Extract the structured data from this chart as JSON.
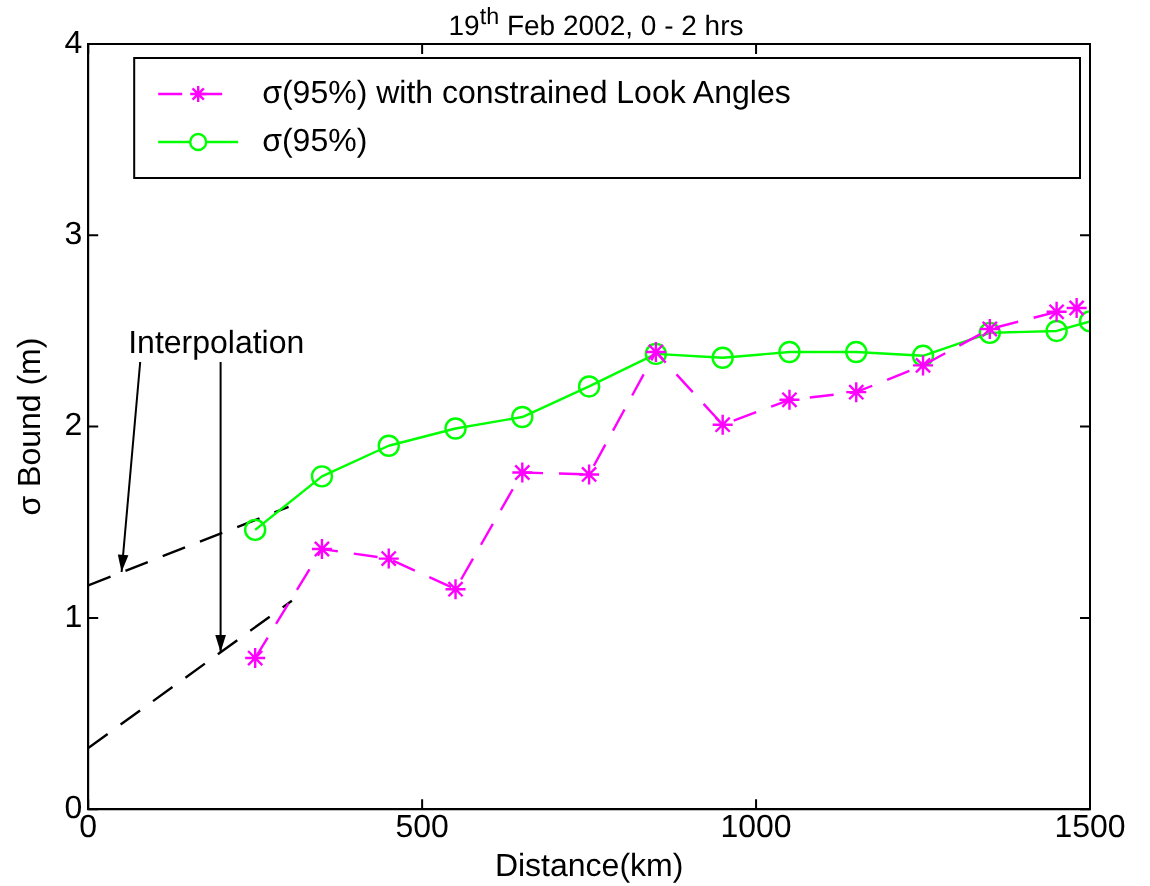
{
  "chart_data": {
    "type": "line",
    "title": "19$^{th}$ Feb 2002, 0 - 2 hrs",
    "xlabel": "Distance(km)",
    "ylabel": "σ Bound (m)",
    "xlim": [
      0,
      1500
    ],
    "xticks": [
      0,
      500,
      1000,
      1500
    ],
    "ylim": [
      0,
      4
    ],
    "yticks": [
      0,
      1,
      2,
      3,
      4
    ],
    "grid": false,
    "legend": "top",
    "annotations": [
      {
        "text": "Interpolation",
        "x": 50,
        "y": 1.24
      }
    ],
    "series": [
      {
        "name": "σ(95%) with constrained Look Angles",
        "color": "#ff00ff",
        "marker": "cross",
        "line_style": "dashed",
        "x": [
          250,
          350,
          450,
          550,
          650,
          750,
          850,
          950,
          1050,
          1150,
          1250,
          1350,
          1450,
          1480
        ],
        "values": [
          0.79,
          1.36,
          1.31,
          1.15,
          1.76,
          1.75,
          2.39,
          2.01,
          2.14,
          2.18,
          2.32,
          2.51,
          2.6,
          2.62
        ]
      },
      {
        "name": "σ(95%)",
        "color": "#00ff00",
        "marker": "circle",
        "line_style": "solid",
        "x": [
          250,
          350,
          450,
          550,
          650,
          750,
          850,
          950,
          1050,
          1150,
          1250,
          1350,
          1450,
          1500
        ],
        "values": [
          1.46,
          1.74,
          1.9,
          1.99,
          2.05,
          2.21,
          2.38,
          2.36,
          2.39,
          2.39,
          2.37,
          2.49,
          2.5,
          2.55
        ]
      },
      {
        "color": "#000000",
        "marker": "none",
        "line_style": "dashed",
        "x": [
          0,
          300
        ],
        "values": [
          1.17,
          1.58
        ]
      },
      {
        "color": "#000000",
        "marker": "none",
        "line_style": "dashed",
        "x": [
          0,
          305
        ],
        "values": [
          0.32,
          1.09
        ]
      }
    ]
  }
}
